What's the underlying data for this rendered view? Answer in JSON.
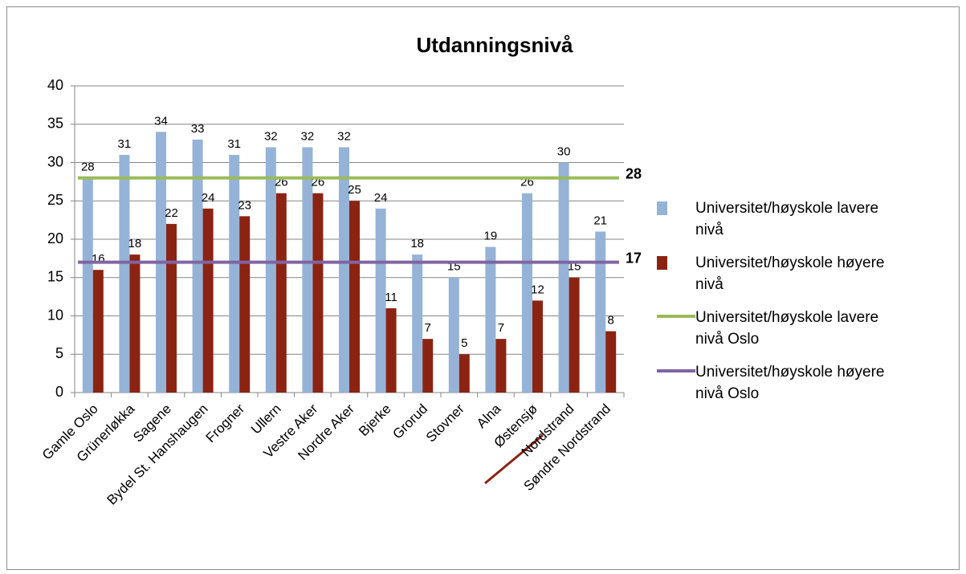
{
  "chart_data": {
    "type": "bar",
    "title": "Utdanningsnivå",
    "categories": [
      "Gamle Oslo",
      "Grünerløkka",
      "Sagene",
      "Bydel St. Hanshaugen",
      "Frogner",
      "Ullern",
      "Vestre Aker",
      "Nordre Aker",
      "Bjerke",
      "Grorud",
      "Stovner",
      "Alna",
      "Østensjø",
      "Nordstrand",
      "Søndre Nordstrand"
    ],
    "series": [
      {
        "name": "Universitet/høyskole lavere nivå",
        "color": "#95b3d7",
        "values": [
          28,
          31,
          34,
          33,
          31,
          32,
          32,
          32,
          24,
          18,
          15,
          19,
          26,
          30,
          21
        ]
      },
      {
        "name": "Universitet/høyskole høyere nivå",
        "color": "#8b2313",
        "values": [
          16,
          18,
          22,
          24,
          23,
          26,
          26,
          25,
          11,
          7,
          5,
          7,
          12,
          15,
          8
        ]
      },
      {
        "name": "Universitet/høyskole lavere nivå Oslo",
        "color": "#9bbb59",
        "value": 28
      },
      {
        "name": "Universitet/høyskole høyere nivå Oslo",
        "color": "#8064a2",
        "value": 17
      }
    ],
    "ylim": [
      0,
      40
    ],
    "yticks": [
      0,
      5,
      10,
      15,
      20,
      25,
      30,
      35,
      40
    ],
    "grid": true,
    "legend": "right"
  }
}
